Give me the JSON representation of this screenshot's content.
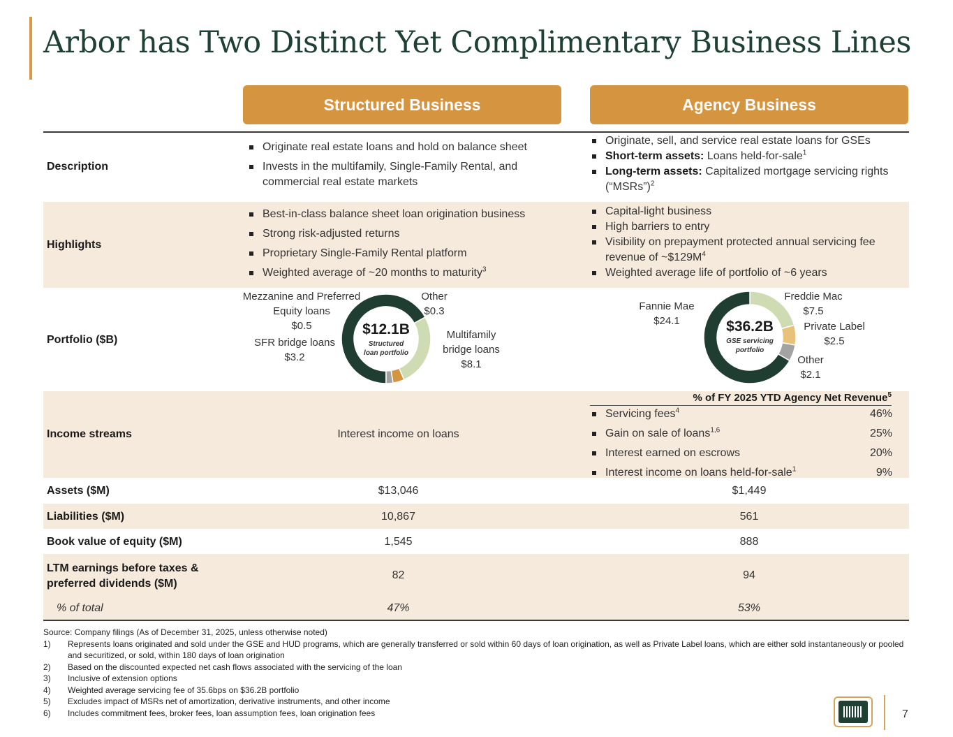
{
  "title": "Arbor has Two Distinct Yet Complimentary Business Lines",
  "columns": {
    "structured": "Structured Business",
    "agency": "Agency Business"
  },
  "rows": {
    "description": {
      "label": "Description",
      "structured": [
        "Originate real estate loans and hold on balance sheet",
        "Invests in the multifamily, Single-Family Rental, and commercial real estate markets"
      ],
      "agency": {
        "b1": "Originate, sell, and service real estate loans for GSEs",
        "b2_bold": "Short-term assets:",
        "b2_text": " Loans held-for-sale",
        "b2_sup": "1",
        "b3_bold": "Long-term assets:",
        "b3_text": " Capitalized mortgage servicing rights (“MSRs”)",
        "b3_sup": "2"
      }
    },
    "highlights": {
      "label": "Highlights",
      "structured": [
        "Best-in-class balance sheet loan origination business",
        "Strong risk-adjusted returns",
        "Proprietary Single-Family Rental platform"
      ],
      "structured_last": "Weighted average of ~20 months to maturity",
      "structured_last_sup": "3",
      "agency": [
        "Capital-light business",
        "High barriers to entry"
      ],
      "agency_b3": "Visibility on prepayment protected annual servicing fee revenue of ~$129M",
      "agency_b3_sup": "4",
      "agency_b4": "Weighted average life of portfolio of ~6 years"
    },
    "portfolio": {
      "label": "Portfolio ($B)",
      "structured": {
        "total": "$12.1B",
        "caption": "Structured loan portfolio",
        "segments": [
          {
            "name": "Multifamily bridge loans",
            "value": 8.1,
            "display": "$8.1",
            "color": "#1f3d30"
          },
          {
            "name": "SFR bridge loans",
            "value": 3.2,
            "display": "$3.2",
            "color": "#cfdcb3"
          },
          {
            "name": "Mezzanine and Preferred Equity loans",
            "value": 0.5,
            "display": "$0.5",
            "color": "#d5943f"
          },
          {
            "name": "Other",
            "value": 0.3,
            "display": "$0.3",
            "color": "#a3a3a3"
          }
        ],
        "labels": {
          "multifamily_1": "Multifamily",
          "multifamily_2": "bridge loans",
          "sfr": "SFR bridge loans",
          "mezz_1": "Mezzanine and Preferred",
          "mezz_2": "Equity loans",
          "other": "Other"
        }
      },
      "agency": {
        "total": "$36.2B",
        "caption": "GSE servicing portfolio",
        "segments": [
          {
            "name": "Freddie Mac",
            "value": 7.5,
            "display": "$7.5",
            "color": "#cfdcb3"
          },
          {
            "name": "Private Label",
            "value": 2.5,
            "display": "$2.5",
            "color": "#e8c17a"
          },
          {
            "name": "Other",
            "value": 2.1,
            "display": "$2.1",
            "color": "#a3a3a3"
          },
          {
            "name": "Fannie Mae",
            "value": 24.1,
            "display": "$24.1",
            "color": "#1f3d30"
          }
        ]
      }
    },
    "income": {
      "label": "Income streams",
      "structured": "Interest income on loans",
      "agency_header": "% of FY 2025 YTD Agency Net Revenue",
      "agency_header_sup": "5",
      "items": [
        {
          "name": "Servicing fees",
          "sup": "4",
          "pct": "46%"
        },
        {
          "name": "Gain on sale of loans",
          "sup": "1,6",
          "pct": "25%"
        },
        {
          "name": "Interest earned on escrows",
          "sup": "",
          "pct": "20%"
        },
        {
          "name": "Interest income on loans held-for-sale",
          "sup": "1",
          "pct": "9%"
        }
      ]
    },
    "assets": {
      "label": "Assets ($M)",
      "structured": "$13,046",
      "agency": "$1,449"
    },
    "liabilities": {
      "label": "Liabilities ($M)",
      "structured": "10,867",
      "agency": "561"
    },
    "book": {
      "label": "Book value of equity ($M)",
      "structured": "1,545",
      "agency": "888"
    },
    "ltm": {
      "label_1": "LTM earnings before taxes &",
      "label_2": "preferred dividends ($M)",
      "structured": "82",
      "agency": "94"
    },
    "pct_total": {
      "label": "% of total",
      "structured": "47%",
      "agency": "53%"
    }
  },
  "footnotes": {
    "source": "Source: Company filings (As of December 31, 2025, unless otherwise noted)",
    "items": [
      {
        "n": "1)",
        "text": "Represents loans originated and sold under the GSE and HUD programs, which are generally transferred or sold within 60 days of loan origination, as well as Private Label loans, which are either sold instantaneously or pooled and securitized, or sold, within 180 days of loan origination"
      },
      {
        "n": "2)",
        "text": "Based on the discounted expected net cash flows associated with the servicing of the loan"
      },
      {
        "n": "3)",
        "text": "Inclusive of extension options"
      },
      {
        "n": "4)",
        "text": "Weighted average servicing fee of 35.6bps on $36.2B portfolio"
      },
      {
        "n": "5)",
        "text": "Excludes impact of MSRs net of amortization, derivative instruments, and other income"
      },
      {
        "n": "6)",
        "text": "Includes commitment fees, broker fees, loan assumption fees, loan origination fees"
      }
    ]
  },
  "page_number": "7",
  "colors": {
    "accent": "#d5943f",
    "title": "#1f4134",
    "shade": "#f5eadb"
  }
}
